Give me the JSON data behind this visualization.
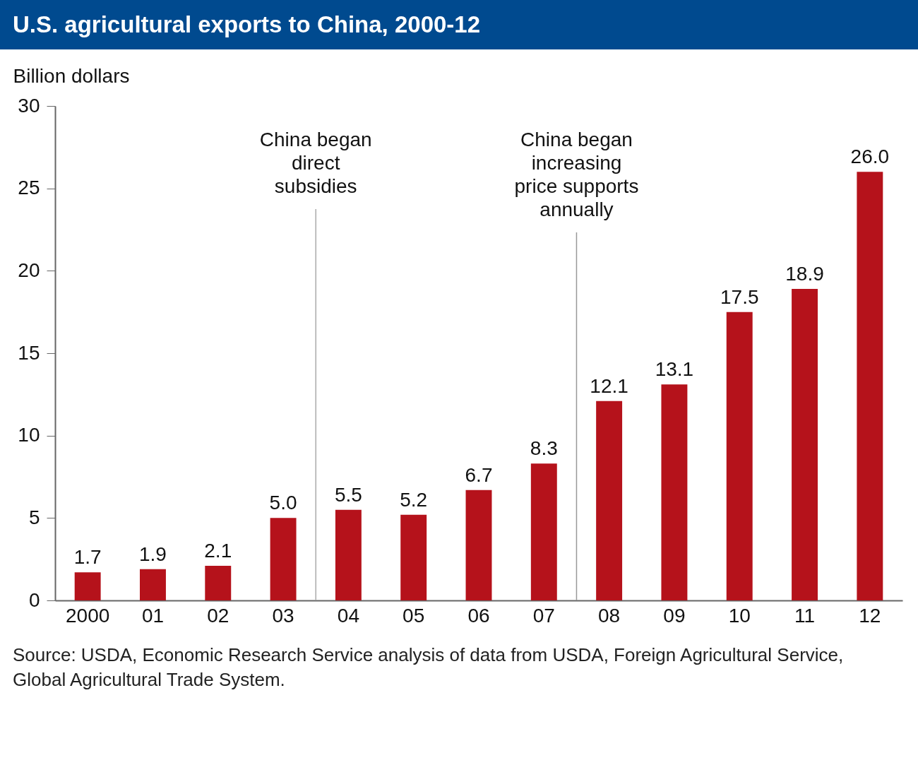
{
  "chart_data": {
    "type": "bar",
    "title": "U.S. agricultural exports to China, 2000-12",
    "ylabel": "Billion dollars",
    "categories": [
      "2000",
      "01",
      "02",
      "03",
      "04",
      "05",
      "06",
      "07",
      "08",
      "09",
      "10",
      "11",
      "12"
    ],
    "values": [
      1.7,
      1.9,
      2.1,
      5.0,
      5.5,
      5.2,
      6.7,
      8.3,
      12.1,
      13.1,
      17.5,
      18.9,
      26.0
    ],
    "value_labels": [
      "1.7",
      "1.9",
      "2.1",
      "5.0",
      "5.5",
      "5.2",
      "6.7",
      "8.3",
      "12.1",
      "13.1",
      "17.5",
      "18.9",
      "26.0"
    ],
    "color": "#b5121b",
    "ylim": [
      0,
      30
    ],
    "yticks": [
      0,
      5,
      10,
      15,
      20,
      25,
      30
    ],
    "grid": false,
    "ref_lines": [
      {
        "axis": "x",
        "value": "04",
        "label": "China began direct subsidies",
        "color": "#aaaaaa"
      },
      {
        "axis": "x",
        "value": "08",
        "label": "China began increasing price supports annually",
        "color": "#999999"
      }
    ],
    "annotations": [
      "Source: USDA, Economic Research Service analysis of data from USDA, Foreign Agricultural Service, Global Agricultural Trade System."
    ]
  }
}
